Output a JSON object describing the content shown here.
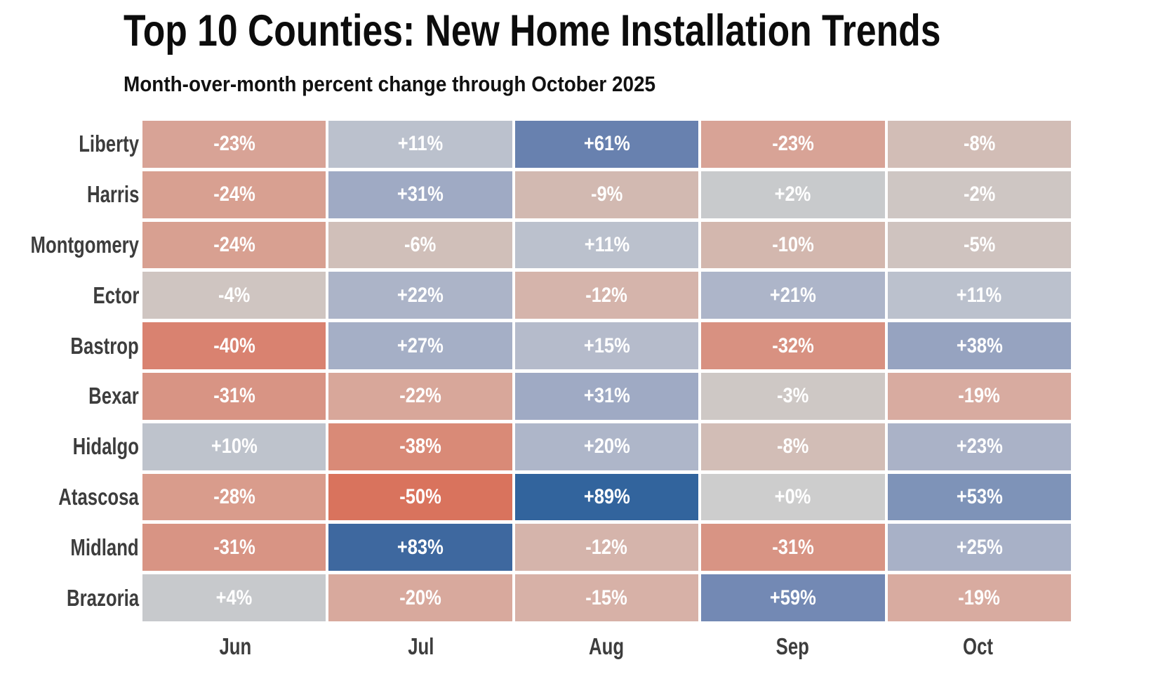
{
  "title": "Top 10 Counties: New Home Installation Trends",
  "subtitle": "Month-over-month percent change through October 2025",
  "chart_data": {
    "type": "heatmap",
    "rows": [
      "Liberty",
      "Harris",
      "Montgomery",
      "Ector",
      "Bastrop",
      "Bexar",
      "Hidalgo",
      "Atascosa",
      "Midland",
      "Brazoria"
    ],
    "columns": [
      "Jun",
      "Jul",
      "Aug",
      "Sep",
      "Oct"
    ],
    "values": [
      [
        -23,
        11,
        61,
        -23,
        -8
      ],
      [
        -24,
        31,
        -9,
        2,
        -2
      ],
      [
        -24,
        -6,
        11,
        -10,
        -5
      ],
      [
        -4,
        22,
        -12,
        21,
        11
      ],
      [
        -40,
        27,
        15,
        -32,
        38
      ],
      [
        -31,
        -22,
        31,
        -3,
        -19
      ],
      [
        10,
        -38,
        20,
        -8,
        23
      ],
      [
        -28,
        -50,
        89,
        0,
        53
      ],
      [
        -31,
        83,
        -12,
        -31,
        25
      ],
      [
        4,
        -20,
        -15,
        59,
        -19
      ]
    ],
    "labels": [
      [
        "-23%",
        "+11%",
        "+61%",
        "-23%",
        "-8%"
      ],
      [
        "-24%",
        "+31%",
        "-9%",
        "+2%",
        "-2%"
      ],
      [
        "-24%",
        "-6%",
        "+11%",
        "-10%",
        "-5%"
      ],
      [
        "-4%",
        "+22%",
        "-12%",
        "+21%",
        "+11%"
      ],
      [
        "-40%",
        "+27%",
        "+15%",
        "-32%",
        "+38%"
      ],
      [
        "-31%",
        "-22%",
        "+31%",
        "-3%",
        "-19%"
      ],
      [
        "+10%",
        "-38%",
        "+20%",
        "-8%",
        "+23%"
      ],
      [
        "-28%",
        "-50%",
        "+89%",
        "+0%",
        "+53%"
      ],
      [
        "-31%",
        "+83%",
        "-12%",
        "-31%",
        "+25%"
      ],
      [
        "+4%",
        "-20%",
        "-15%",
        "+59%",
        "-19%"
      ]
    ],
    "cell_colors": [
      [
        "#D8A396",
        "#BBC1CD",
        "#6881AF",
        "#D8A396",
        "#D2BDB6"
      ],
      [
        "#D8A091",
        "#9FAAC4",
        "#D2B9B1",
        "#C8CACC",
        "#CEC6C3"
      ],
      [
        "#D8A091",
        "#D0BFB9",
        "#BBC1CD",
        "#D3B7AE",
        "#CFC3BF"
      ],
      [
        "#CFC5C1",
        "#ACB4C8",
        "#D5B4AB",
        "#ADB5C9",
        "#BBC1CD"
      ],
      [
        "#D98270",
        "#A5AFC6",
        "#B5BBCB",
        "#D89181",
        "#96A3C0"
      ],
      [
        "#D89484",
        "#D8A79A",
        "#9FAAC4",
        "#CEC8C5",
        "#D8ABA0"
      ],
      [
        "#BEC3CC",
        "#D98A77",
        "#AEB6C9",
        "#D2BDB6",
        "#AAB2C7"
      ],
      [
        "#D99C8C",
        "#D9735D",
        "#32649D",
        "#CDCDCD",
        "#7E93B8"
      ],
      [
        "#D89484",
        "#3E689F",
        "#D5B4AB",
        "#D89484",
        "#A8B1C7"
      ],
      [
        "#C7C9CC",
        "#D8A99D",
        "#D7B1A7",
        "#7389B4",
        "#D8ABA0"
      ]
    ],
    "colormap": {
      "negative_end": "#D9735D",
      "center": "#CDCDCD",
      "positive_end": "#32649D",
      "cell_text_color": "#FFFFFF"
    },
    "layout": {
      "legend": "none",
      "grid_gap_color": "#FFFFFF",
      "row_label_color": "#3D3D3D",
      "month_label_color": "#3D3D3D"
    }
  }
}
